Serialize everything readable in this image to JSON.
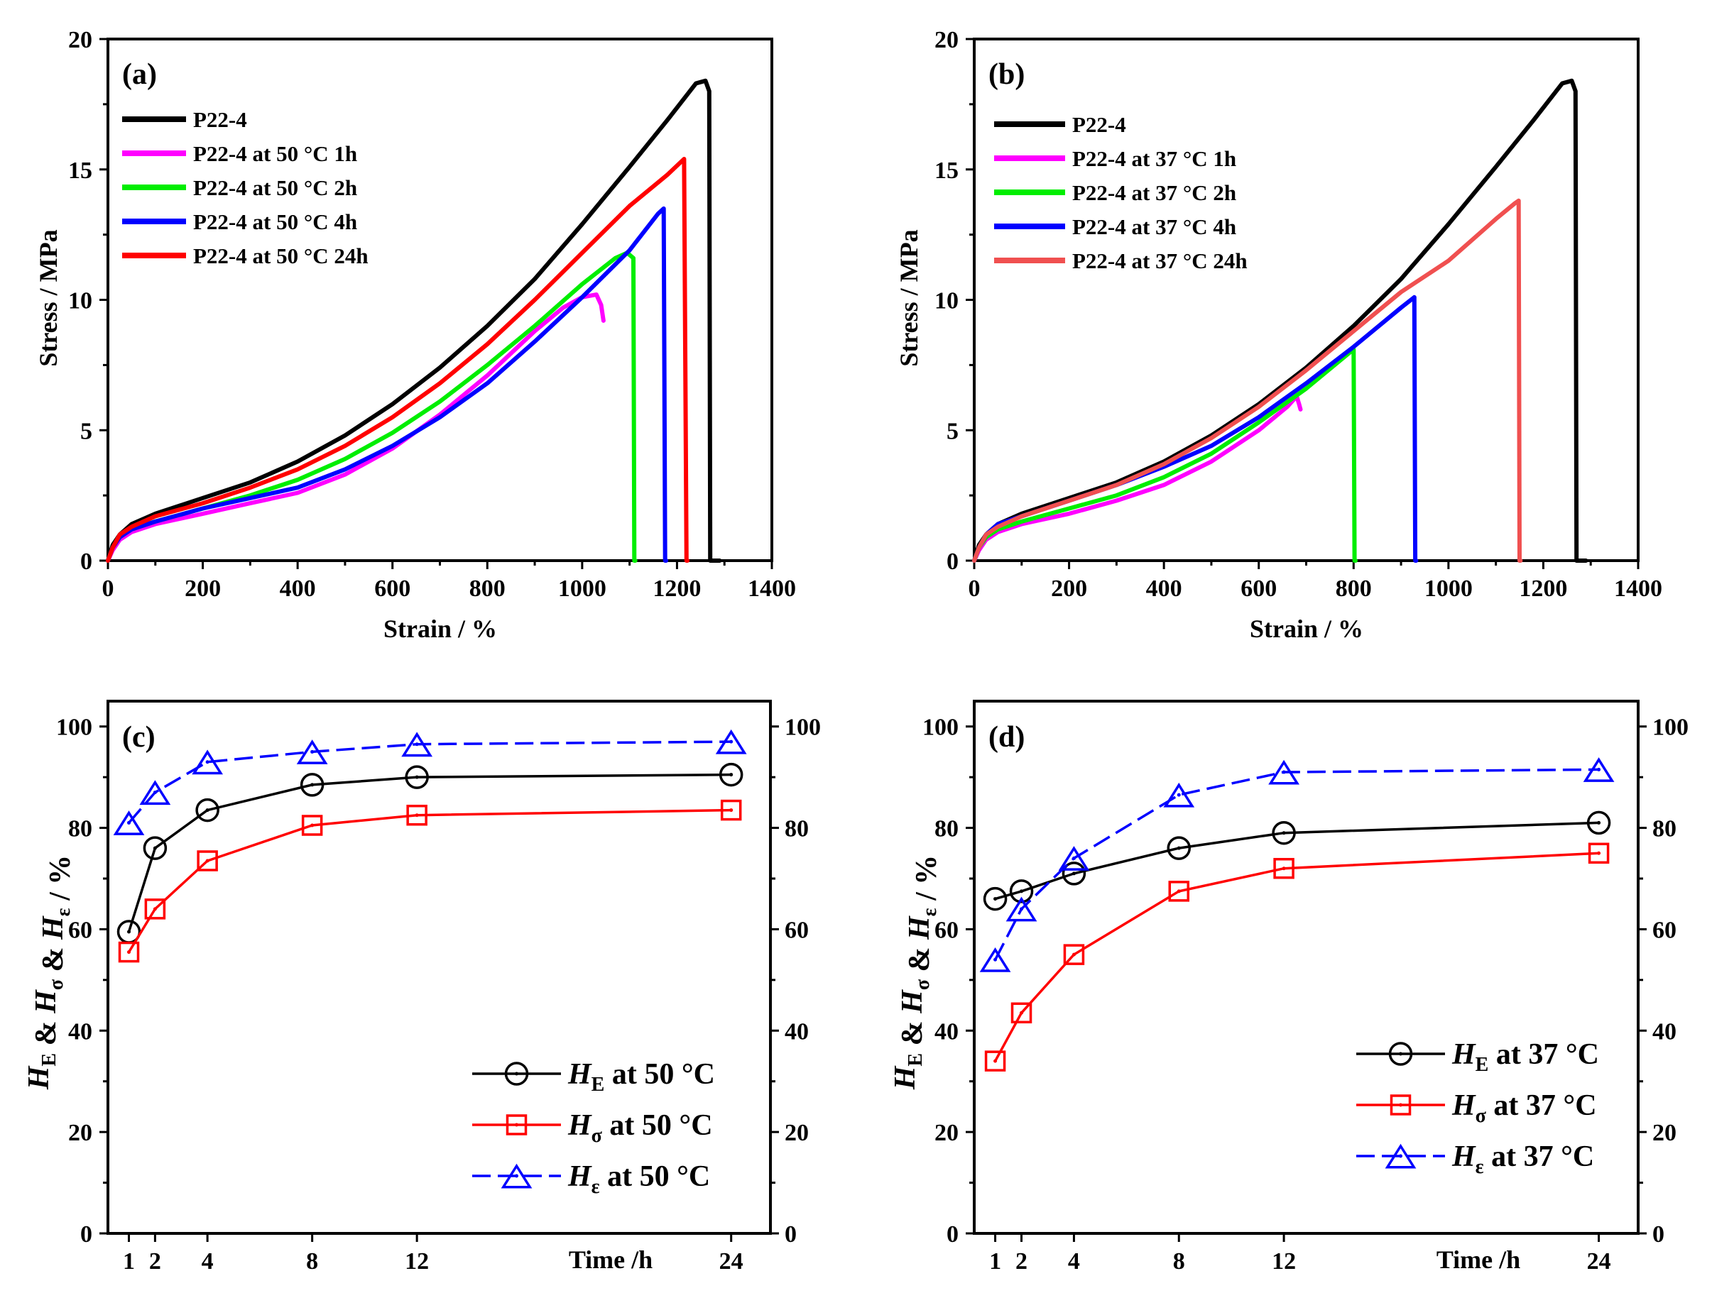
{
  "chart_data": [
    {
      "type": "line",
      "panel_label": "(a)",
      "xlabel": "Strain / %",
      "ylabel": "Stress / MPa",
      "xlim": [
        0,
        1400
      ],
      "ylim": [
        0,
        20
      ],
      "xticks": [
        "0",
        "200",
        "400",
        "600",
        "800",
        "1000",
        "1200",
        "1400"
      ],
      "yticks": [
        "0",
        "5",
        "10",
        "15",
        "20"
      ],
      "legend_position": "top-left",
      "series": [
        {
          "name": "P22-4",
          "color": "#000000",
          "x": [
            0,
            10,
            25,
            50,
            100,
            200,
            300,
            400,
            500,
            600,
            700,
            800,
            900,
            1000,
            1100,
            1180,
            1240,
            1260,
            1268,
            1270,
            1290
          ],
          "y": [
            0,
            0.6,
            1.0,
            1.4,
            1.8,
            2.4,
            3.0,
            3.8,
            4.8,
            6.0,
            7.4,
            9.0,
            10.8,
            12.9,
            15.1,
            16.9,
            18.3,
            18.4,
            18.0,
            0,
            0
          ]
        },
        {
          "name": "P22-4 at 50 °C 1h",
          "color": "#ff00ff",
          "x": [
            0,
            10,
            25,
            50,
            100,
            200,
            300,
            400,
            500,
            600,
            700,
            800,
            900,
            960,
            1000,
            1030,
            1040,
            1045
          ],
          "y": [
            0,
            0.4,
            0.8,
            1.1,
            1.4,
            1.8,
            2.2,
            2.6,
            3.3,
            4.3,
            5.6,
            7.1,
            8.8,
            9.7,
            10.1,
            10.2,
            9.8,
            9.2
          ]
        },
        {
          "name": "P22-4 at 50 °C 2h",
          "color": "#00ee00",
          "x": [
            0,
            10,
            25,
            50,
            100,
            200,
            300,
            400,
            500,
            600,
            700,
            800,
            900,
            1000,
            1070,
            1095,
            1108,
            1110,
            1112
          ],
          "y": [
            0,
            0.5,
            0.9,
            1.2,
            1.5,
            2.0,
            2.5,
            3.1,
            3.9,
            4.9,
            6.1,
            7.5,
            9.0,
            10.6,
            11.6,
            11.8,
            11.6,
            0,
            0
          ]
        },
        {
          "name": "P22-4 at 50 °C 4h",
          "color": "#0000ff",
          "x": [
            0,
            10,
            25,
            50,
            100,
            200,
            300,
            400,
            500,
            600,
            700,
            800,
            900,
            1000,
            1100,
            1160,
            1172,
            1175,
            1177
          ],
          "y": [
            0,
            0.5,
            0.9,
            1.2,
            1.5,
            2.0,
            2.4,
            2.8,
            3.5,
            4.4,
            5.5,
            6.8,
            8.4,
            10.1,
            11.9,
            13.3,
            13.5,
            0,
            0
          ]
        },
        {
          "name": "P22-4 at 50 °C 24h",
          "color": "#ff0000",
          "x": [
            0,
            10,
            25,
            50,
            100,
            200,
            300,
            400,
            500,
            600,
            700,
            800,
            900,
            1000,
            1100,
            1180,
            1215,
            1220,
            1222
          ],
          "y": [
            0,
            0.5,
            1.0,
            1.3,
            1.7,
            2.2,
            2.8,
            3.5,
            4.4,
            5.5,
            6.8,
            8.3,
            10.0,
            11.8,
            13.6,
            14.8,
            15.4,
            0,
            0
          ]
        }
      ]
    },
    {
      "type": "line",
      "panel_label": "(b)",
      "xlabel": "Strain / %",
      "ylabel": "Stress / MPa",
      "xlim": [
        0,
        1400
      ],
      "ylim": [
        0,
        20
      ],
      "xticks": [
        "0",
        "200",
        "400",
        "600",
        "800",
        "1000",
        "1200",
        "1400"
      ],
      "yticks": [
        "0",
        "5",
        "10",
        "15",
        "20"
      ],
      "legend_position": "top-left",
      "series": [
        {
          "name": "P22-4",
          "color": "#000000",
          "x": [
            0,
            10,
            25,
            50,
            100,
            200,
            300,
            400,
            500,
            600,
            700,
            800,
            900,
            1000,
            1100,
            1180,
            1240,
            1260,
            1268,
            1270,
            1290
          ],
          "y": [
            0,
            0.6,
            1.0,
            1.4,
            1.8,
            2.4,
            3.0,
            3.8,
            4.8,
            6.0,
            7.4,
            9.0,
            10.8,
            12.9,
            15.1,
            16.9,
            18.3,
            18.4,
            18.0,
            0,
            0
          ]
        },
        {
          "name": "P22-4 at 37 °C 1h",
          "color": "#ff00ff",
          "x": [
            0,
            10,
            25,
            50,
            100,
            200,
            300,
            400,
            500,
            600,
            660,
            680,
            685,
            688
          ],
          "y": [
            0,
            0.4,
            0.8,
            1.1,
            1.4,
            1.8,
            2.3,
            2.9,
            3.8,
            5.0,
            5.9,
            6.3,
            6.0,
            5.8
          ]
        },
        {
          "name": "P22-4 at 37 °C 2h",
          "color": "#00ee00",
          "x": [
            0,
            10,
            25,
            50,
            100,
            200,
            300,
            400,
            500,
            600,
            700,
            780,
            800,
            802,
            804
          ],
          "y": [
            0,
            0.5,
            0.9,
            1.2,
            1.5,
            2.0,
            2.5,
            3.2,
            4.1,
            5.3,
            6.6,
            7.8,
            8.1,
            0,
            0
          ]
        },
        {
          "name": "P22-4 at 37 °C 4h",
          "color": "#0000ff",
          "x": [
            0,
            10,
            25,
            50,
            100,
            200,
            300,
            400,
            500,
            600,
            700,
            800,
            900,
            928,
            930,
            932
          ],
          "y": [
            0,
            0.5,
            1.0,
            1.4,
            1.7,
            2.3,
            2.9,
            3.6,
            4.4,
            5.5,
            6.8,
            8.2,
            9.7,
            10.1,
            0,
            0
          ]
        },
        {
          "name": "P22-4 at 37 °C 24h",
          "color": "#f05050",
          "x": [
            0,
            10,
            25,
            50,
            100,
            200,
            300,
            400,
            500,
            600,
            700,
            800,
            900,
            1000,
            1050,
            1100,
            1140,
            1148,
            1150,
            1152
          ],
          "y": [
            0,
            0.5,
            1.0,
            1.3,
            1.7,
            2.3,
            2.9,
            3.7,
            4.7,
            5.9,
            7.3,
            8.8,
            10.3,
            11.5,
            12.3,
            13.1,
            13.7,
            13.8,
            0,
            0
          ]
        }
      ]
    },
    {
      "type": "line",
      "panel_label": "(c)",
      "xlabel": "Time /h",
      "ylabel": "H_E & H_σ & H_ε / %",
      "ylim": [
        0,
        105
      ],
      "xlim": [
        0.2,
        25.5
      ],
      "xticks": [
        "1",
        "2",
        "4",
        "8",
        "12",
        "24"
      ],
      "yticks": [
        "0",
        "20",
        "40",
        "60",
        "80",
        "100"
      ],
      "legend_position": "bottom-right",
      "x": [
        1,
        2,
        4,
        8,
        12,
        24
      ],
      "series": [
        {
          "name": "H",
          "sub": "E",
          "suffix": " at 50 °C",
          "color": "#000000",
          "marker": "circle",
          "dash": "solid",
          "values": [
            59.5,
            76,
            83.5,
            88.5,
            90,
            90.5
          ]
        },
        {
          "name": "H",
          "sub": "σ",
          "suffix": " at 50 °C",
          "color": "#ff0000",
          "marker": "square",
          "dash": "solid",
          "values": [
            55.5,
            64,
            73.5,
            80.5,
            82.5,
            83.5
          ]
        },
        {
          "name": "H",
          "sub": "ε",
          "suffix": " at 50 °C",
          "color": "#0000ff",
          "marker": "triangle",
          "dash": "dashed",
          "values": [
            81,
            87,
            93,
            95,
            96.5,
            97
          ]
        }
      ]
    },
    {
      "type": "line",
      "panel_label": "(d)",
      "xlabel": "Time /h",
      "ylabel": "H_E & H_σ & H_ε / %",
      "ylim": [
        0,
        105
      ],
      "xlim": [
        0.2,
        25.5
      ],
      "xticks": [
        "1",
        "2",
        "4",
        "8",
        "12",
        "24"
      ],
      "yticks": [
        "0",
        "20",
        "40",
        "60",
        "80",
        "100"
      ],
      "legend_position": "bottom-right",
      "x": [
        1,
        2,
        4,
        8,
        12,
        24
      ],
      "series": [
        {
          "name": "H",
          "sub": "E",
          "suffix": " at 37 °C",
          "color": "#000000",
          "marker": "circle",
          "dash": "solid",
          "values": [
            66,
            67.5,
            71,
            76,
            79,
            81
          ]
        },
        {
          "name": "H",
          "sub": "σ",
          "suffix": " at 37 °C",
          "color": "#ff0000",
          "marker": "square",
          "dash": "solid",
          "values": [
            34,
            43.5,
            55,
            67.5,
            72,
            75
          ]
        },
        {
          "name": "H",
          "sub": "ε",
          "suffix": " at 37 °C",
          "color": "#0000ff",
          "marker": "triangle",
          "dash": "dashed",
          "values": [
            54,
            64,
            74,
            86.5,
            91,
            91.5
          ]
        }
      ]
    }
  ]
}
